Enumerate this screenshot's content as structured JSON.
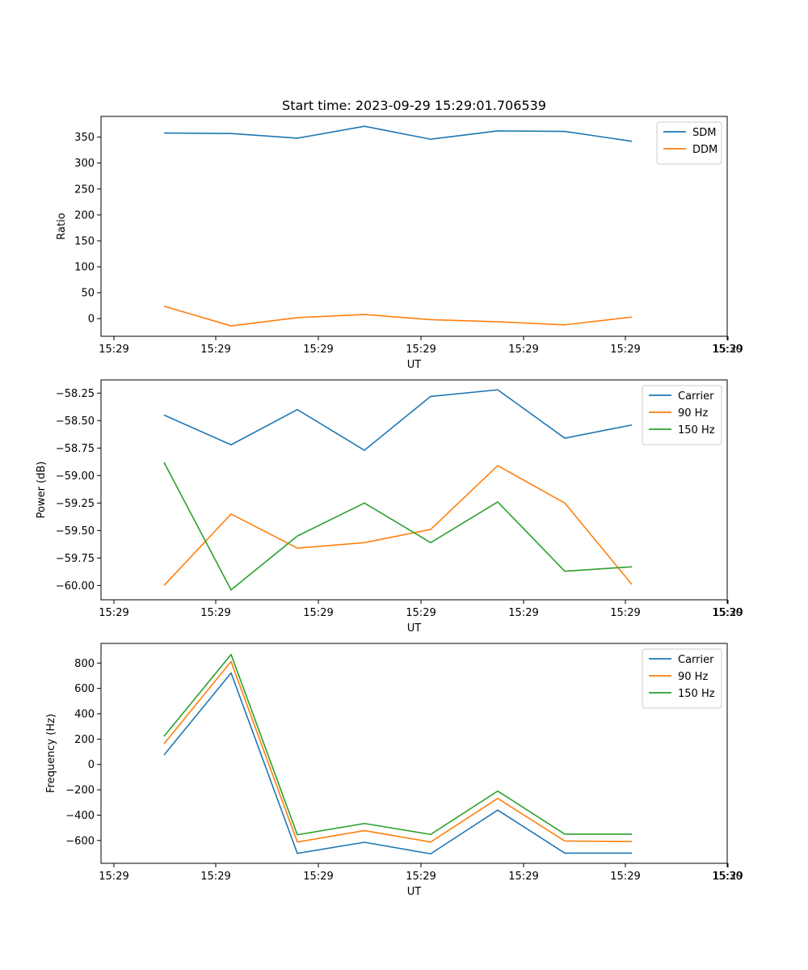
{
  "chart_data": [
    {
      "type": "line",
      "title": "Start time: 2023-09-29 15:29:01.706539",
      "xlabel": "UT",
      "ylabel": "Ratio",
      "x_tick_labels": [
        "15:29",
        "15:29",
        "15:29",
        "15:29",
        "15:29",
        "15:29",
        "15:29",
        "15:30"
      ],
      "x": [
        1,
        2,
        3,
        4,
        5,
        6,
        7,
        8
      ],
      "ylim": [
        -34,
        390
      ],
      "yticks": [
        0,
        50,
        100,
        150,
        200,
        250,
        300,
        350
      ],
      "legend": "top-right",
      "series": [
        {
          "name": "SDM",
          "color": "#1f77b4",
          "values": [
            358,
            357,
            348,
            371,
            346,
            362,
            361,
            342
          ]
        },
        {
          "name": "DDM",
          "color": "#ff7f0e",
          "values": [
            24,
            -14,
            2,
            8,
            -2,
            -6,
            -12,
            3
          ]
        }
      ]
    },
    {
      "type": "line",
      "title": "",
      "xlabel": "UT",
      "ylabel": "Power (dB)",
      "x_tick_labels": [
        "15:29",
        "15:29",
        "15:29",
        "15:29",
        "15:29",
        "15:29",
        "15:29",
        "15:30"
      ],
      "x": [
        1,
        2,
        3,
        4,
        5,
        6,
        7,
        8
      ],
      "ylim": [
        -60.13,
        -58.13
      ],
      "yticks": [
        -60.0,
        -59.75,
        -59.5,
        -59.25,
        -59.0,
        -58.75,
        -58.5,
        -58.25
      ],
      "ytick_labels": [
        "−60.00",
        "−59.75",
        "−59.50",
        "−59.25",
        "−59.00",
        "−58.75",
        "−58.50",
        "−58.25"
      ],
      "legend": "top-right",
      "series": [
        {
          "name": "Carrier",
          "color": "#1f77b4",
          "values": [
            -58.45,
            -58.72,
            -58.4,
            -58.77,
            -58.28,
            -58.22,
            -58.66,
            -58.54
          ]
        },
        {
          "name": "90 Hz",
          "color": "#ff7f0e",
          "values": [
            -60.0,
            -59.35,
            -59.66,
            -59.61,
            -59.49,
            -58.91,
            -59.25,
            -59.99
          ]
        },
        {
          "name": "150 Hz",
          "color": "#2ca02c",
          "values": [
            -58.88,
            -60.04,
            -59.55,
            -59.25,
            -59.61,
            -59.24,
            -59.87,
            -59.83
          ]
        }
      ]
    },
    {
      "type": "line",
      "title": "",
      "xlabel": "UT",
      "ylabel": "Frequency (Hz)",
      "x_tick_labels": [
        "15:29",
        "15:29",
        "15:29",
        "15:29",
        "15:29",
        "15:29",
        "15:29",
        "15:30"
      ],
      "x": [
        1,
        2,
        3,
        4,
        5,
        6,
        7,
        8
      ],
      "ylim": [
        -780,
        955
      ],
      "yticks": [
        -600,
        -400,
        -200,
        0,
        200,
        400,
        600,
        800
      ],
      "ytick_labels": [
        "−600",
        "−400",
        "−200",
        "0",
        "200",
        "400",
        "600",
        "800"
      ],
      "legend": "top-right",
      "series": [
        {
          "name": "Carrier",
          "color": "#1f77b4",
          "values": [
            75,
            722,
            -702,
            -614,
            -705,
            -360,
            -700,
            -700
          ]
        },
        {
          "name": "90 Hz",
          "color": "#ff7f0e",
          "values": [
            163,
            812,
            -612,
            -522,
            -612,
            -268,
            -604,
            -608
          ]
        },
        {
          "name": "150 Hz",
          "color": "#2ca02c",
          "values": [
            222,
            868,
            -555,
            -466,
            -552,
            -210,
            -550,
            -550
          ]
        }
      ]
    }
  ]
}
